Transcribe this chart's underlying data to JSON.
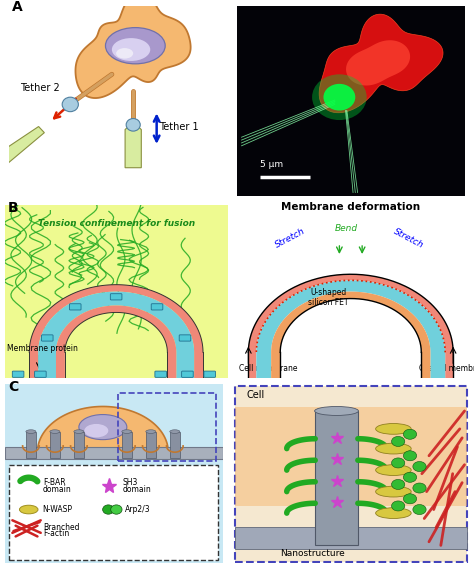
{
  "panel_A_label": "A",
  "panel_B_label": "B",
  "panel_C_label": "C",
  "cell_color": "#F5B870",
  "cell_border": "#C07830",
  "nucleus_outer": "#A898CC",
  "nucleus_inner": "#D8D0F0",
  "nucleus_glow": "#F0EEF8",
  "pipette_color": "#D8ECA0",
  "pipette_border": "#8A9040",
  "bead_color": "#A8CCE0",
  "tether_color": "#D4A060",
  "bg_color": "#FFFFFF",
  "photo_bg": "#030308",
  "tension_bg": "#E8F880",
  "actin_color": "#22AA22",
  "protein_color": "#50C8D8",
  "membrane_pink": "#F08878",
  "membrane_cyan": "#70D0DC",
  "membrane_orange": "#F0A060",
  "cell_c_color": "#F5B870",
  "nanostructure_color": "#9098A8",
  "platform_color": "#A8B0BC",
  "fbar_color": "#22AA22",
  "sh3_color": "#CC44CC",
  "nwasp_color": "#D8C840",
  "arp23_color": "#33BB33",
  "factin_color": "#CC2222",
  "zoom_border": "#4444BB",
  "cr_bg": "#F5E8D0"
}
